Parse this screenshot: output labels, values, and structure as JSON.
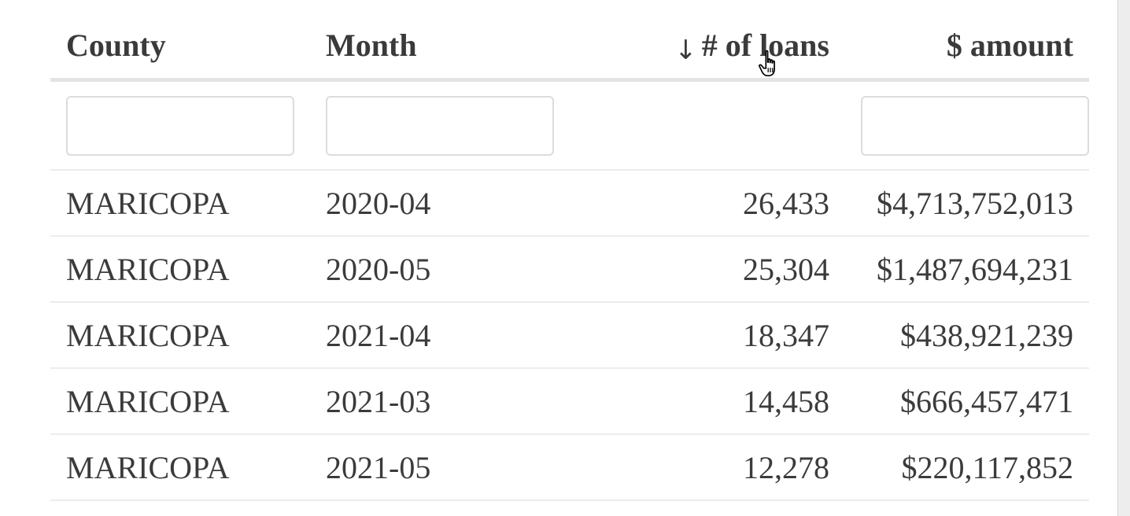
{
  "table": {
    "headers": {
      "county": "County",
      "month": "Month",
      "loans": "# of loans",
      "amount": "$ amount"
    },
    "sort_icon": "arrow-down-icon",
    "sort_glyph": "↓",
    "filters": {
      "county_value": "",
      "month_value": "",
      "amount_value": ""
    },
    "rows": [
      {
        "county": "MARICOPA",
        "month": "2020-04",
        "loans": "26,433",
        "amount": "$4,713,752,013"
      },
      {
        "county": "MARICOPA",
        "month": "2020-05",
        "loans": "25,304",
        "amount": "$1,487,694,231"
      },
      {
        "county": "MARICOPA",
        "month": "2021-04",
        "loans": "18,347",
        "amount": "$438,921,239"
      },
      {
        "county": "MARICOPA",
        "month": "2021-03",
        "loans": "14,458",
        "amount": "$666,457,471"
      },
      {
        "county": "MARICOPA",
        "month": "2021-05",
        "loans": "12,278",
        "amount": "$220,117,852"
      }
    ]
  },
  "cursor_icon": "hand-pointer-icon"
}
